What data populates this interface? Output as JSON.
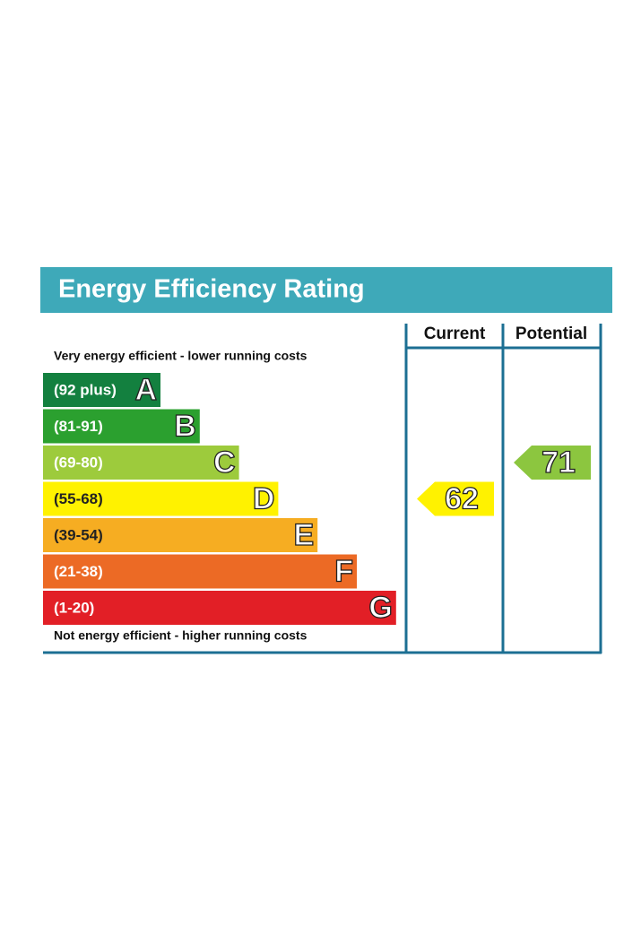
{
  "chart_data": {
    "type": "epc",
    "title": "Energy Efficiency Rating",
    "top_note": "Very energy efficient - lower running costs",
    "bottom_note": "Not energy efficient - higher running costs",
    "columns": [
      "Current",
      "Potential"
    ],
    "bands": [
      {
        "range": "(92 plus)",
        "letter": "A",
        "color": "#13803f",
        "text_color": "#ffffff"
      },
      {
        "range": "(81-91)",
        "letter": "B",
        "color": "#2ba02f",
        "text_color": "#ffffff"
      },
      {
        "range": "(69-80)",
        "letter": "C",
        "color": "#9dcb3c",
        "text_color": "#ffffff"
      },
      {
        "range": "(55-68)",
        "letter": "D",
        "color": "#fff200",
        "text_color": "#222222"
      },
      {
        "range": "(39-54)",
        "letter": "E",
        "color": "#f6ad22",
        "text_color": "#222222"
      },
      {
        "range": "(21-38)",
        "letter": "F",
        "color": "#ec6a25",
        "text_color": "#ffffff"
      },
      {
        "range": "(1-20)",
        "letter": "G",
        "color": "#e21f26",
        "text_color": "#ffffff"
      }
    ],
    "values": [
      62,
      71
    ],
    "value_colors": [
      "#fff200",
      "#8cc63f"
    ]
  }
}
